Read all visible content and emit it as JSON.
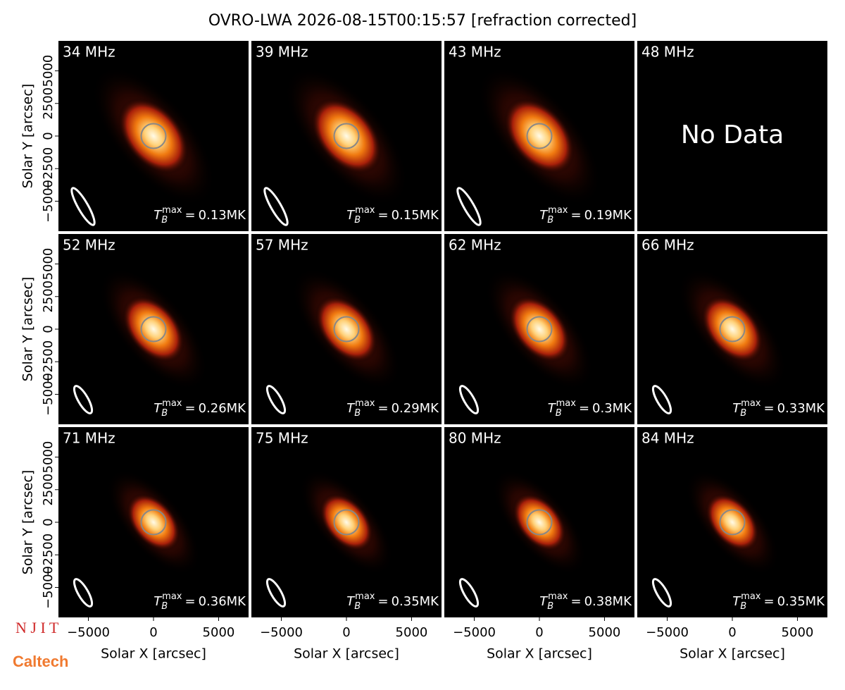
{
  "chart_data": {
    "type": "image",
    "title": "OVRO-LWA 2026-08-15T00:15:57 [refraction corrected]",
    "xlabel": "Solar X [arcsec]",
    "ylabel": "Solar Y [arcsec]",
    "xlim": [
      -7300,
      7300
    ],
    "ylim": [
      -7300,
      7300
    ],
    "xticks": [
      {
        "value": -5000,
        "label": "−5000"
      },
      0,
      5000
    ],
    "yticks": [
      {
        "value": -5000,
        "label": "−5000"
      },
      {
        "value": -2500,
        "label": "−2500"
      },
      0,
      2500,
      5000
    ],
    "tb_symbol": "T",
    "tb_sub": "B",
    "tb_sup": "max",
    "tb_eq": "=",
    "panels": [
      {
        "freq": "34 MHz",
        "tb": "0.13MK"
      },
      {
        "freq": "39 MHz",
        "tb": "0.15MK"
      },
      {
        "freq": "43 MHz",
        "tb": "0.19MK"
      },
      {
        "freq": "48 MHz",
        "note": "No Data"
      },
      {
        "freq": "52 MHz",
        "tb": "0.26MK"
      },
      {
        "freq": "57 MHz",
        "tb": "0.29MK"
      },
      {
        "freq": "62 MHz",
        "tb": "0.3MK"
      },
      {
        "freq": "66 MHz",
        "tb": "0.33MK"
      },
      {
        "freq": "71 MHz",
        "tb": "0.36MK"
      },
      {
        "freq": "75 MHz",
        "tb": "0.35MK"
      },
      {
        "freq": "80 MHz",
        "tb": "0.38MK"
      },
      {
        "freq": "84 MHz",
        "tb": "0.35MK"
      }
    ],
    "logos": [
      "N J I T",
      "Caltech"
    ]
  }
}
